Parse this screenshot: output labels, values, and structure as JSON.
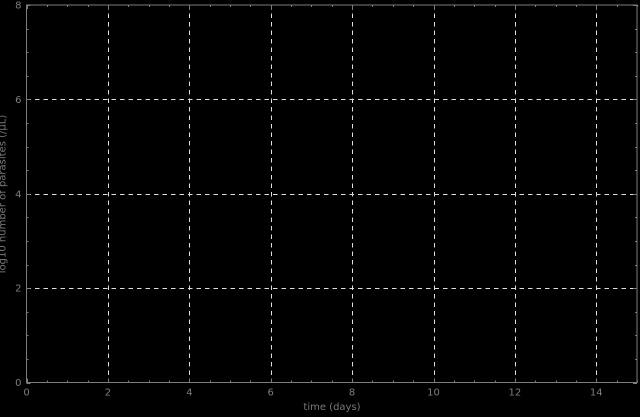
{
  "chart_data": {
    "type": "line",
    "title": "",
    "xlabel": "time (days)",
    "ylabel": "log10 number of parasites (/μL)",
    "xlim": [
      0,
      15
    ],
    "ylim": [
      0,
      8
    ],
    "x_major_ticks": [
      0,
      2,
      4,
      6,
      8,
      10,
      12,
      14
    ],
    "y_major_ticks": [
      0,
      2,
      4,
      6,
      8
    ],
    "x_minor_step": 0.5,
    "y_minor_step": 0.5,
    "grid": true,
    "grid_style": "dashed",
    "legend": null,
    "series": [],
    "colors": {
      "background": "#000000",
      "grid": "#dedede",
      "axis": "#7d7d7d",
      "tick_label": "#7d7d7d",
      "axis_label": "#787878"
    }
  }
}
